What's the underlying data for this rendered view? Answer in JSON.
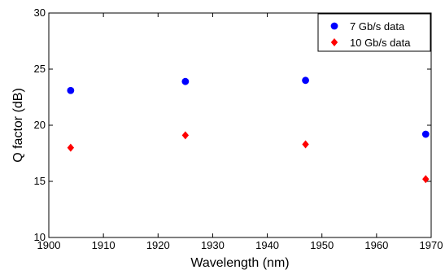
{
  "chart_data": {
    "type": "scatter",
    "title": "",
    "xlabel": "Wavelength (nm)",
    "ylabel": "Q factor (dB)",
    "xlim": [
      1900,
      1970
    ],
    "ylim": [
      10,
      30
    ],
    "xticks": [
      "1900",
      "1910",
      "1920",
      "1930",
      "1940",
      "1950",
      "1960",
      "1970"
    ],
    "yticks": [
      "10",
      "15",
      "20",
      "25",
      "30"
    ],
    "grid": false,
    "legend_position": "top-right",
    "series": [
      {
        "name": "7 Gb/s data",
        "marker": "circle",
        "color": "#0000ff",
        "x": [
          1904,
          1925,
          1947,
          1969
        ],
        "y": [
          23.1,
          23.9,
          24.0,
          19.2
        ]
      },
      {
        "name": "10 Gb/s data",
        "marker": "diamond",
        "color": "#ff0000",
        "x": [
          1904,
          1925,
          1947,
          1969
        ],
        "y": [
          18.0,
          19.1,
          18.3,
          15.2
        ]
      }
    ]
  }
}
